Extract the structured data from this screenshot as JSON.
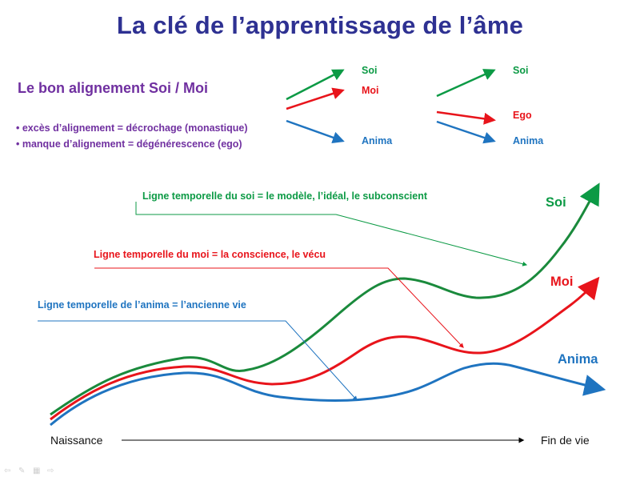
{
  "slide": {
    "title": "La clé de l’apprentissage de l’âme",
    "heading": "Le bon alignement Soi / Moi",
    "bullets": [
      "• excès d’alignement = décrochage (monastique)",
      "• manque d’alignement = dégénérescence (ego)"
    ]
  },
  "legend_left": {
    "soi": "Soi",
    "moi": "Moi",
    "anima": "Anima"
  },
  "legend_right": {
    "soi": "Soi",
    "ego": "Ego",
    "anima": "Anima"
  },
  "annotations": {
    "soi_line": "Ligne temporelle du soi = le modèle, l’idéal, le subconscient",
    "moi_line": "Ligne temporelle du moi = la conscience, le vécu",
    "anima_line": "Ligne temporelle de l’anima = l’ancienne vie"
  },
  "curve_labels": {
    "soi": "Soi",
    "moi": "Moi",
    "anima": "Anima"
  },
  "axis": {
    "start": "Naissance",
    "end": "Fin de vie"
  },
  "colors": {
    "title": "#2e3192",
    "heading": "#7030a0",
    "soi": "#0c9a45",
    "moi": "#e8141b",
    "anima": "#1f74c0"
  },
  "nav_icons": [
    "back-arrow-icon",
    "pen-icon",
    "slide-grid-icon",
    "forward-arrow-icon"
  ]
}
